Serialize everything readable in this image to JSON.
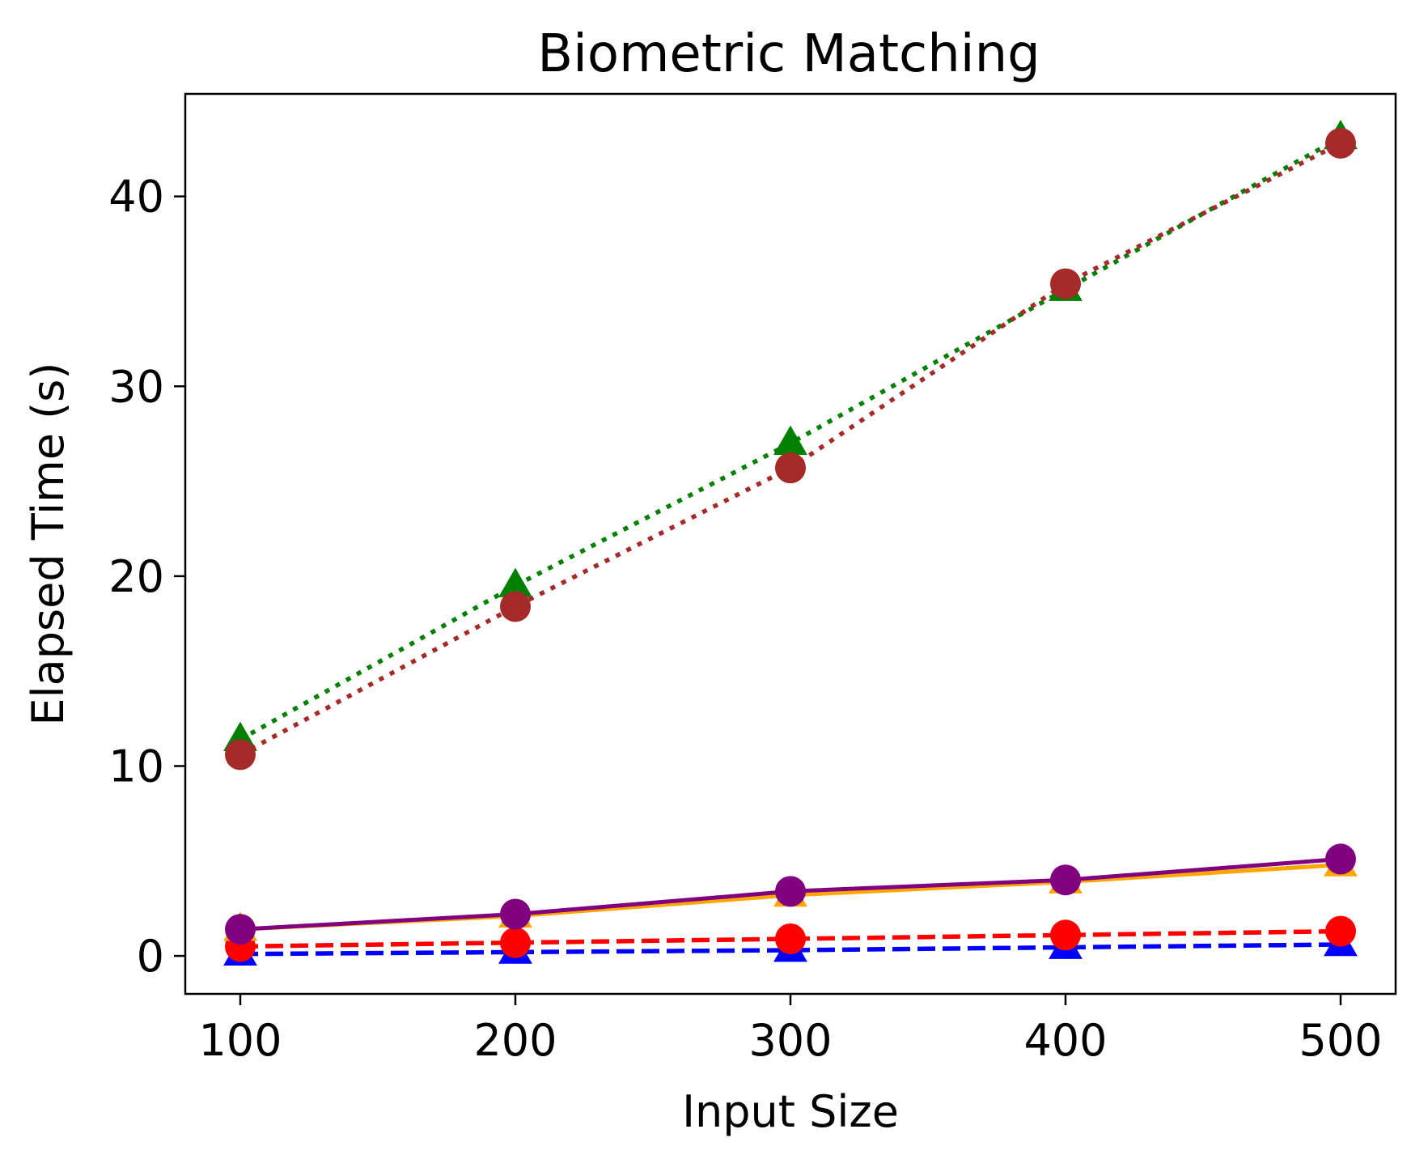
{
  "chart_data": {
    "type": "line",
    "title": "Biometric Matching",
    "xlabel": "Input Size",
    "ylabel": "Elapsed Time (s)",
    "x": [
      100,
      200,
      300,
      400,
      500
    ],
    "xlim": [
      80,
      520
    ],
    "ylim": [
      -2,
      45.4
    ],
    "xticks": [
      100,
      200,
      300,
      400,
      500
    ],
    "yticks": [
      0,
      10,
      20,
      30,
      40
    ],
    "xtick_labels": [
      "100",
      "200",
      "300",
      "400",
      "500"
    ],
    "ytick_labels": [
      "0",
      "10",
      "20",
      "30",
      "40"
    ],
    "grid": false,
    "series": [
      {
        "color": "#0000ff",
        "linestyle": "dashed",
        "marker": "triangle",
        "values": [
          0.1,
          0.2,
          0.3,
          0.45,
          0.6
        ]
      },
      {
        "color": "#ff0000",
        "linestyle": "dashed",
        "marker": "circle",
        "values": [
          0.5,
          0.7,
          0.9,
          1.1,
          1.3
        ]
      },
      {
        "color": "#ffa500",
        "linestyle": "solid",
        "marker": "triangle",
        "values": [
          1.4,
          2.1,
          3.2,
          3.9,
          4.8
        ]
      },
      {
        "color": "#800080",
        "linestyle": "solid",
        "marker": "circle",
        "values": [
          1.4,
          2.2,
          3.4,
          4.0,
          5.1
        ]
      },
      {
        "color": "#008000",
        "linestyle": "dotted",
        "marker": "triangle",
        "values": [
          11.4,
          19.5,
          27.0,
          35.1,
          43.1
        ]
      },
      {
        "color": "#a52a2a",
        "linestyle": "dotted",
        "marker": "circle",
        "values": [
          10.6,
          18.4,
          25.7,
          35.4,
          42.8
        ]
      }
    ]
  }
}
